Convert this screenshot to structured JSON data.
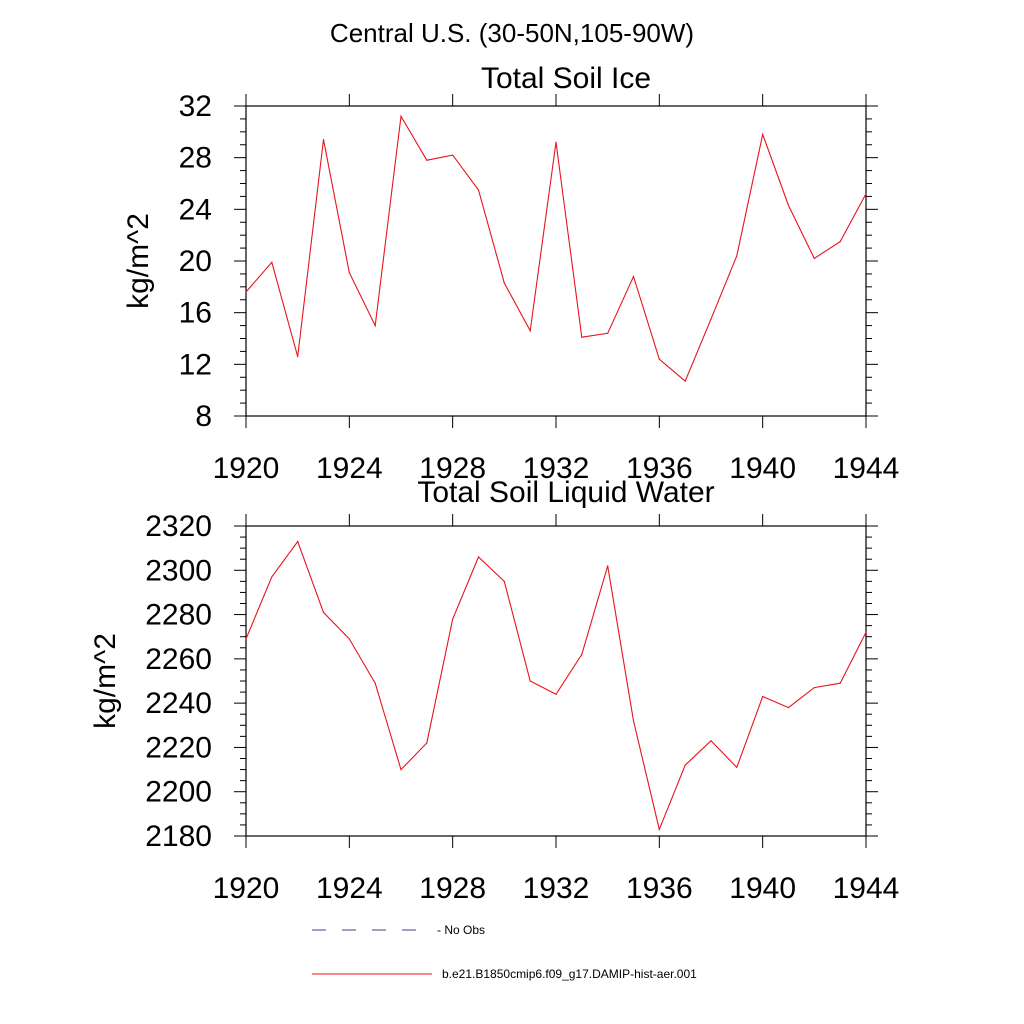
{
  "suptitle": "Central U.S. (30-50N,105-90W)",
  "chart_data": [
    {
      "type": "line",
      "title": "Total Soil Ice",
      "xlabel": "",
      "ylabel": "kg/m^2",
      "xlim": [
        1920,
        1944
      ],
      "ylim": [
        8,
        32
      ],
      "xticks": [
        1920,
        1924,
        1928,
        1932,
        1936,
        1940,
        1944
      ],
      "yticks": [
        8,
        12,
        16,
        20,
        24,
        28,
        32
      ],
      "x": [
        1920,
        1921,
        1922,
        1923,
        1924,
        1925,
        1926,
        1927,
        1928,
        1929,
        1930,
        1931,
        1932,
        1933,
        1934,
        1935,
        1936,
        1937,
        1938,
        1939,
        1940,
        1941,
        1942,
        1943,
        1944
      ],
      "series": [
        {
          "name": "b.e21.B1850cmip6.f09_g17.DAMIP-hist-aer.001",
          "color": "#e8141c",
          "values": [
            17.6,
            19.9,
            12.6,
            29.4,
            19.1,
            15.0,
            31.2,
            27.8,
            28.2,
            25.5,
            18.3,
            14.6,
            29.2,
            14.1,
            14.4,
            18.8,
            12.4,
            10.7,
            15.5,
            20.4,
            29.8,
            24.3,
            20.2,
            21.5,
            25.2
          ]
        }
      ]
    },
    {
      "type": "line",
      "title": "Total Soil Liquid Water",
      "xlabel": "",
      "ylabel": "kg/m^2",
      "xlim": [
        1920,
        1944
      ],
      "ylim": [
        2180,
        2320
      ],
      "xticks": [
        1920,
        1924,
        1928,
        1932,
        1936,
        1940,
        1944
      ],
      "yticks": [
        2180,
        2200,
        2220,
        2240,
        2260,
        2280,
        2300,
        2320
      ],
      "x": [
        1920,
        1921,
        1922,
        1923,
        1924,
        1925,
        1926,
        1927,
        1928,
        1929,
        1930,
        1931,
        1932,
        1933,
        1934,
        1935,
        1936,
        1937,
        1938,
        1939,
        1940,
        1941,
        1942,
        1943,
        1944
      ],
      "series": [
        {
          "name": "b.e21.B1850cmip6.f09_g17.DAMIP-hist-aer.001",
          "color": "#e8141c",
          "values": [
            2269,
            2297,
            2313,
            2281,
            2269,
            2249,
            2210,
            2222,
            2278,
            2306,
            2295,
            2250,
            2244,
            2262,
            2302,
            2232,
            2183,
            2212,
            2223,
            2211,
            2243,
            2238,
            2247,
            2249,
            2272
          ]
        }
      ]
    }
  ],
  "legend": [
    {
      "label": "No Obs",
      "color": "#3a3f8f",
      "style": "dashed"
    },
    {
      "label": "b.e21.B1850cmip6.f09_g17.DAMIP-hist-aer.001",
      "color": "#e8141c",
      "style": "solid"
    }
  ]
}
